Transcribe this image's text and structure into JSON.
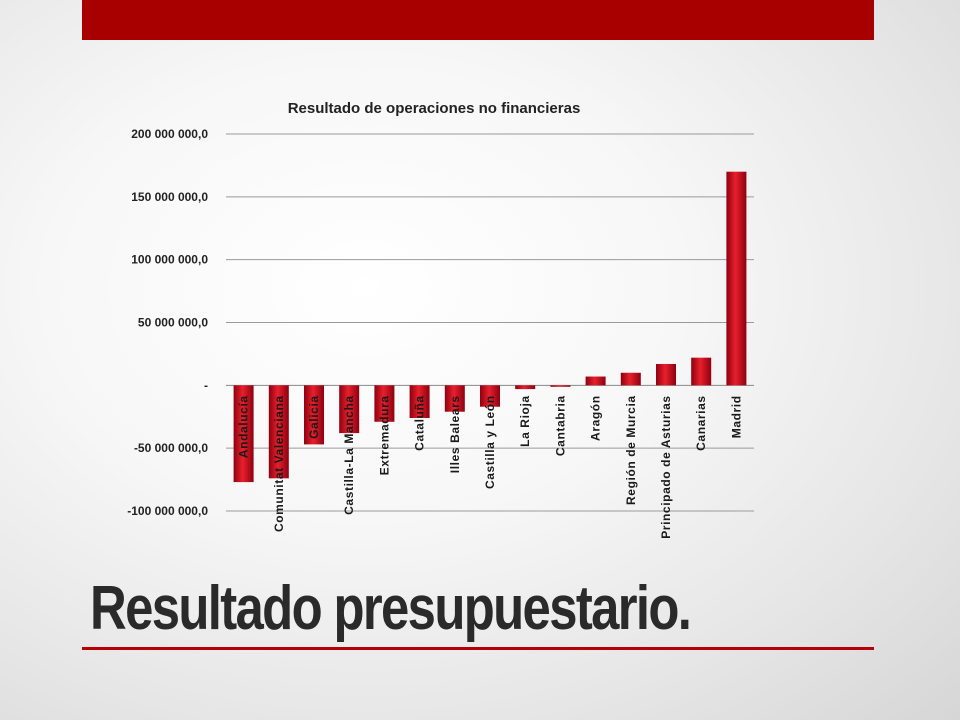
{
  "slide": {
    "title": "Resultado presupuestario.",
    "accent_color": "#a80000",
    "rule_color": "#b80000"
  },
  "chart_data": {
    "type": "bar",
    "title": "Resultado de operaciones no financieras",
    "xlabel": "",
    "ylabel": "",
    "ylim": [
      -100000000,
      200000000
    ],
    "y_ticks": [
      200000000,
      150000000,
      100000000,
      50000000,
      0,
      -50000000,
      -100000000
    ],
    "y_tick_labels": [
      "200 000 000,0",
      "150 000 000,0",
      "100 000 000,0",
      "50 000 000,0",
      "-",
      "-50 000 000,0",
      "-100 000 000,0"
    ],
    "grid": true,
    "legend": "none",
    "bar_color": "#c8101e",
    "categories": [
      "Andalucía",
      "Comunitat Valenciana",
      "Galicia",
      "Castilla-La Mancha",
      "Extremadura",
      "Cataluña",
      "Illes Balears",
      "Castilla y León",
      "La Rioja",
      "Cantabria",
      "Aragón",
      "Región de Murcia",
      "Principado de Asturias",
      "Canarias",
      "Madrid"
    ],
    "values": [
      -77000000,
      -74000000,
      -47000000,
      -38000000,
      -29000000,
      -26000000,
      -21000000,
      -17000000,
      -3000000,
      -1000000,
      7000000,
      10000000,
      17000000,
      22000000,
      170000000
    ]
  }
}
